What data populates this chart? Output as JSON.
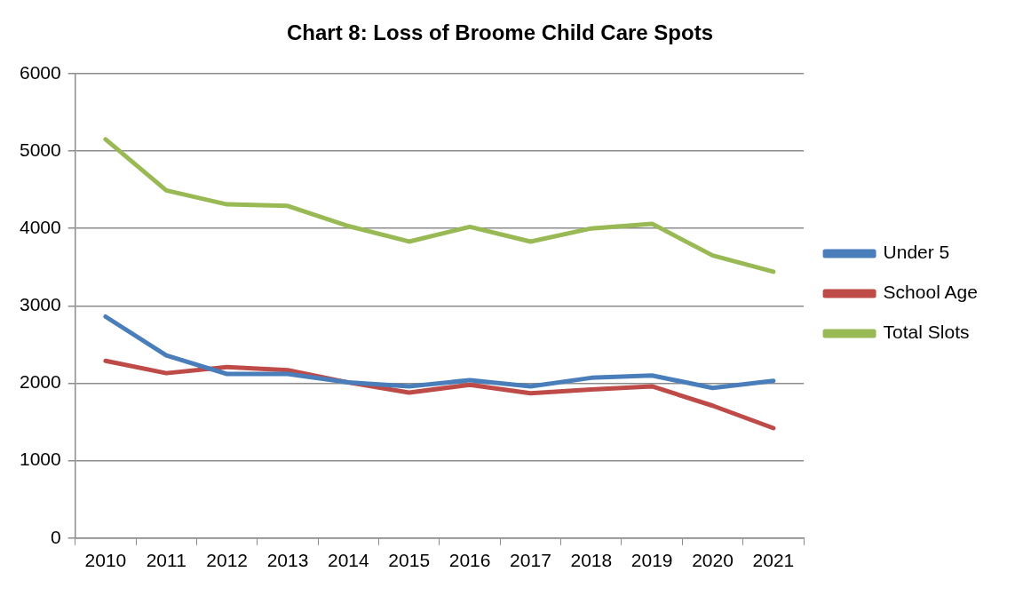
{
  "chart_data": {
    "type": "line",
    "title": "Chart 8: Loss of Broome Child Care Spots",
    "categories": [
      "2010",
      "2011",
      "2012",
      "2013",
      "2014",
      "2015",
      "2016",
      "2017",
      "2018",
      "2019",
      "2020",
      "2021"
    ],
    "series": [
      {
        "name": "Under 5",
        "color": "#4a7ebb",
        "values": [
          2860,
          2360,
          2120,
          2120,
          2010,
          1960,
          2040,
          1960,
          2070,
          2100,
          1940,
          2030
        ]
      },
      {
        "name": "School Age",
        "color": "#be4b48",
        "values": [
          2290,
          2130,
          2210,
          2170,
          2010,
          1880,
          1980,
          1870,
          1920,
          1960,
          1710,
          1420
        ]
      },
      {
        "name": "Total Slots",
        "color": "#98b954",
        "values": [
          5150,
          4490,
          4310,
          4290,
          4030,
          3830,
          4020,
          3830,
          4000,
          4060,
          3650,
          3440
        ]
      }
    ],
    "ylim": [
      0,
      6000
    ],
    "yticks": [
      0,
      1000,
      2000,
      3000,
      4000,
      5000,
      6000
    ],
    "grid": "y",
    "legend": "right",
    "marker": "none",
    "line_style": "solid"
  }
}
